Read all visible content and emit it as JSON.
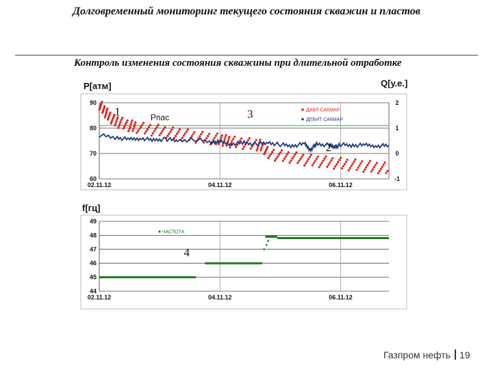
{
  "header": {
    "title": "Долговременный мониторинг текущего состояния скважин и пластов",
    "subtitle": "Контроль изменения состояния скважины при длительной отработке"
  },
  "footer": {
    "company": "Газпром нефть",
    "page": "19"
  },
  "colors": {
    "pressure": "#e0201b",
    "flow": "#1f3a78",
    "frequency": "#1e7a1e",
    "ref_line": "#3aa83a"
  },
  "chart_data": [
    {
      "type": "scatter",
      "ylabel": "P[атм]",
      "y2label": "Q[у.е.]",
      "ylim": [
        60,
        90
      ],
      "y2lim": [
        -1,
        2
      ],
      "xlim": [
        0,
        4.8
      ],
      "yticks": [
        60,
        70,
        80,
        90
      ],
      "y2ticks": [
        -1,
        0,
        1,
        2
      ],
      "xticks": [
        {
          "x": 0,
          "label": "02.11.12"
        },
        {
          "x": 2,
          "label": "04.11.12"
        },
        {
          "x": 4,
          "label": "06.11.12"
        }
      ],
      "hlines": [
        {
          "y": 81,
          "label": "Рпас"
        }
      ],
      "annotations": [
        {
          "text": "1",
          "x": 0.3,
          "y": 85
        },
        {
          "text": "3",
          "x": 2.5,
          "y": 84
        },
        {
          "text": "2",
          "x": 3.8,
          "y": 71
        }
      ],
      "series": [
        {
          "name": "ДАВЛ САКМАР",
          "axis": "left",
          "style": "dots",
          "points": [
            [
              0,
              89.5
            ],
            [
              0.08,
              87
            ],
            [
              0.15,
              85
            ],
            [
              0.25,
              83
            ],
            [
              0.35,
              82
            ],
            [
              0.5,
              81
            ],
            [
              0.6,
              80.5
            ],
            [
              0.8,
              79.5
            ],
            [
              1.0,
              79
            ],
            [
              1.2,
              78
            ],
            [
              1.4,
              77.5
            ],
            [
              1.6,
              76.5
            ],
            [
              1.8,
              76
            ],
            [
              2.0,
              75.5
            ],
            [
              2.1,
              75
            ],
            [
              2.2,
              74.5
            ],
            [
              2.4,
              74
            ],
            [
              2.6,
              73.5
            ],
            [
              2.7,
              73
            ],
            [
              2.8,
              70
            ],
            [
              3.0,
              69
            ],
            [
              3.2,
              68.5
            ],
            [
              3.4,
              67.5
            ],
            [
              3.6,
              67
            ],
            [
              3.8,
              66.5
            ],
            [
              4.0,
              66
            ],
            [
              4.2,
              65.5
            ],
            [
              4.4,
              65
            ],
            [
              4.6,
              64.5
            ],
            [
              4.8,
              64
            ]
          ]
        },
        {
          "name": "ДЕБИТ САКМАР",
          "axis": "right",
          "style": "line",
          "points": [
            [
              0,
              0.72
            ],
            [
              0.3,
              0.62
            ],
            [
              0.5,
              0.55
            ],
            [
              0.7,
              0.6
            ],
            [
              0.9,
              0.52
            ],
            [
              1.1,
              0.57
            ],
            [
              1.3,
              0.5
            ],
            [
              1.6,
              0.55
            ],
            [
              1.9,
              0.44
            ],
            [
              2.0,
              0.45
            ],
            [
              2.2,
              0.38
            ],
            [
              2.4,
              0.42
            ],
            [
              2.6,
              0.36
            ],
            [
              2.8,
              0.42
            ],
            [
              3.0,
              0.35
            ],
            [
              3.2,
              0.3
            ],
            [
              3.4,
              0.38
            ],
            [
              3.5,
              0.15
            ],
            [
              3.6,
              0.36
            ],
            [
              3.8,
              0.33
            ],
            [
              3.9,
              0.25
            ],
            [
              4.0,
              0.35
            ],
            [
              4.2,
              0.32
            ],
            [
              4.4,
              0.33
            ],
            [
              4.6,
              0.3
            ],
            [
              4.8,
              0.32
            ]
          ]
        }
      ]
    },
    {
      "type": "line",
      "ylabel": "f[гц]",
      "ylim": [
        44,
        49
      ],
      "xlim": [
        0,
        4.8
      ],
      "yticks": [
        44,
        45,
        46,
        47,
        48,
        49
      ],
      "xticks": [
        {
          "x": 0,
          "label": "02.11.12"
        },
        {
          "x": 2,
          "label": "04.11.12"
        },
        {
          "x": 4,
          "label": "06.11.12"
        }
      ],
      "annotations": [
        {
          "text": "4",
          "x": 1.45,
          "y": 46.5
        }
      ],
      "series": [
        {
          "name": "ЧАСТОТА",
          "segments": [
            [
              [
                0,
                45
              ],
              [
                1.6,
                45
              ]
            ],
            [
              [
                1.75,
                46
              ],
              [
                2.7,
                46
              ]
            ],
            [
              [
                2.75,
                47.9
              ],
              [
                2.95,
                47.9
              ]
            ],
            [
              [
                2.95,
                47.8
              ],
              [
                4.8,
                47.8
              ]
            ]
          ]
        }
      ]
    }
  ]
}
